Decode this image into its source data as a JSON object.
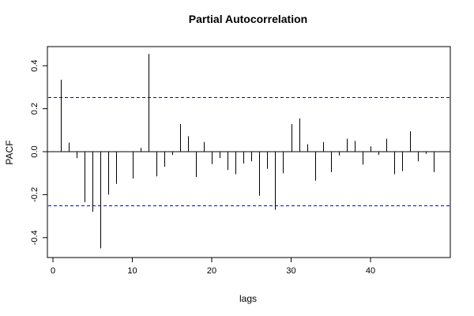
{
  "chart_data": {
    "type": "bar",
    "title": "Partial Autocorrelation",
    "xlabel": "lags",
    "ylabel": "PACF",
    "xlim": [
      0,
      48
    ],
    "ylim": [
      -0.45,
      0.47
    ],
    "x_ticks": [
      0,
      10,
      20,
      30,
      40
    ],
    "y_ticks": [
      -0.4,
      -0.2,
      0.0,
      0.2,
      0.4
    ],
    "x_tick_labels": [
      "0",
      "10",
      "20",
      "30",
      "40"
    ],
    "y_tick_labels": [
      "-0.4",
      "-0.2",
      "0.0",
      "0.2",
      "0.4"
    ],
    "confidence_bounds": [
      0.252,
      -0.252
    ],
    "colors": {
      "spikes": "#000000",
      "bounds": "#0000ff",
      "zero_line": "#000000"
    },
    "lags": [
      1,
      2,
      3,
      4,
      5,
      6,
      7,
      8,
      9,
      10,
      11,
      12,
      13,
      14,
      15,
      16,
      17,
      18,
      19,
      20,
      21,
      22,
      23,
      24,
      25,
      26,
      27,
      28,
      29,
      30,
      31,
      32,
      33,
      34,
      35,
      36,
      37,
      38,
      39,
      40,
      41,
      42,
      43,
      44,
      45,
      46,
      47,
      48
    ],
    "values": [
      0.335,
      0.042,
      -0.03,
      -0.235,
      -0.28,
      -0.45,
      -0.2,
      -0.15,
      0.0,
      -0.125,
      0.018,
      0.455,
      -0.115,
      -0.07,
      -0.015,
      0.128,
      0.072,
      -0.118,
      0.045,
      -0.058,
      -0.03,
      -0.085,
      -0.105,
      -0.055,
      -0.045,
      -0.205,
      -0.08,
      -0.27,
      -0.1,
      0.128,
      0.155,
      0.035,
      -0.135,
      0.045,
      -0.095,
      -0.018,
      0.06,
      0.05,
      -0.06,
      0.025,
      -0.015,
      0.06,
      -0.105,
      -0.09,
      0.095,
      -0.045,
      -0.01,
      -0.095
    ]
  }
}
